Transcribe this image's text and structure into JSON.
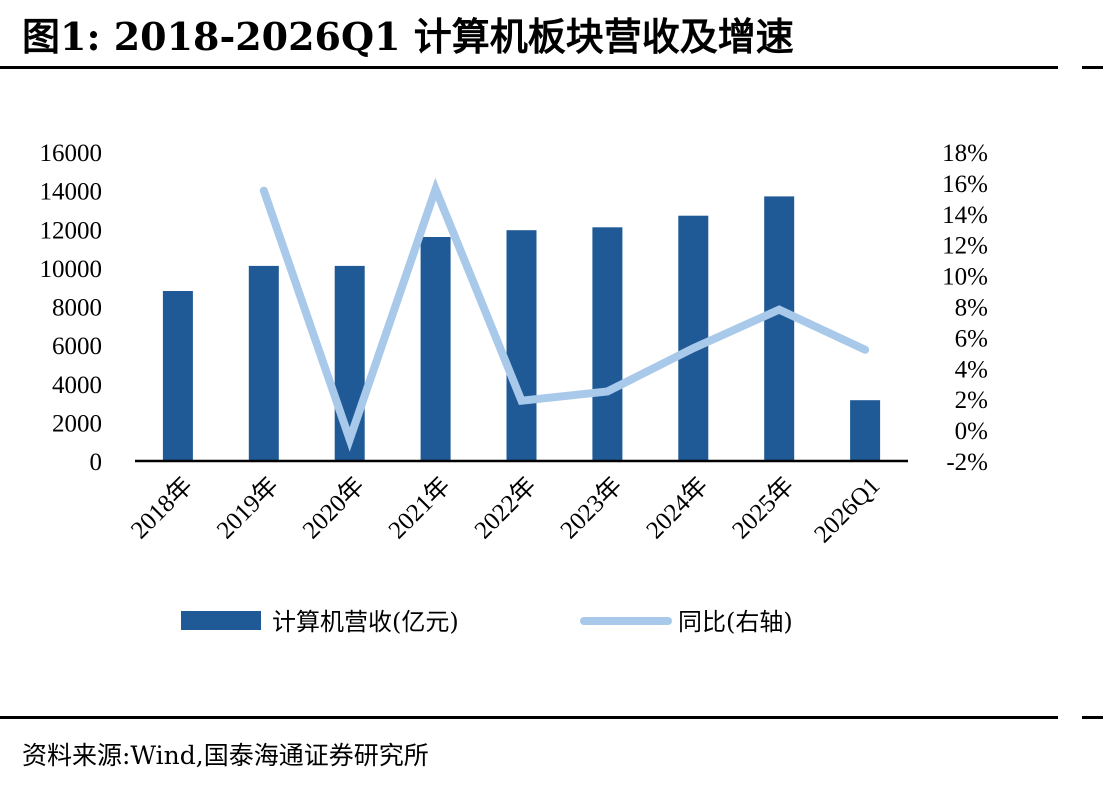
{
  "header": {
    "title": "图1:  2018-2026Q1 计算机板块营收及增速"
  },
  "footer": {
    "source": "资料来源:Wind,国泰海通证券研究所"
  },
  "colors": {
    "bar": "#1f5a96",
    "line": "#a9c9ea",
    "axis": "#000000"
  },
  "chart_data": {
    "type": "bar",
    "categories": [
      "2018年",
      "2019年",
      "2020年",
      "2021年",
      "2022年",
      "2023年",
      "2024年",
      "2025年",
      "2026Q1"
    ],
    "series": [
      {
        "name": "计算机营收(亿元)",
        "type": "bar",
        "axis": "left",
        "values": [
          8800,
          10100,
          10100,
          11600,
          11950,
          12100,
          12700,
          13700,
          3150
        ]
      },
      {
        "name": "同比(右轴)",
        "type": "line",
        "axis": "right",
        "values": [
          null,
          15.5,
          -0.6,
          15.6,
          1.9,
          2.5,
          5.3,
          7.8,
          5.2
        ]
      }
    ],
    "y_left": {
      "min": 0,
      "max": 16000,
      "ticks": [
        "0",
        "2000",
        "4000",
        "6000",
        "8000",
        "10000",
        "12000",
        "14000",
        "16000"
      ]
    },
    "y_right": {
      "min": -2,
      "max": 18,
      "ticks": [
        "-2%",
        "0%",
        "2%",
        "4%",
        "6%",
        "8%",
        "10%",
        "12%",
        "14%",
        "16%",
        "18%"
      ]
    },
    "legend": {
      "position": "bottom",
      "items": [
        "计算机营收(亿元)",
        "同比(右轴)"
      ]
    },
    "grid": false
  }
}
